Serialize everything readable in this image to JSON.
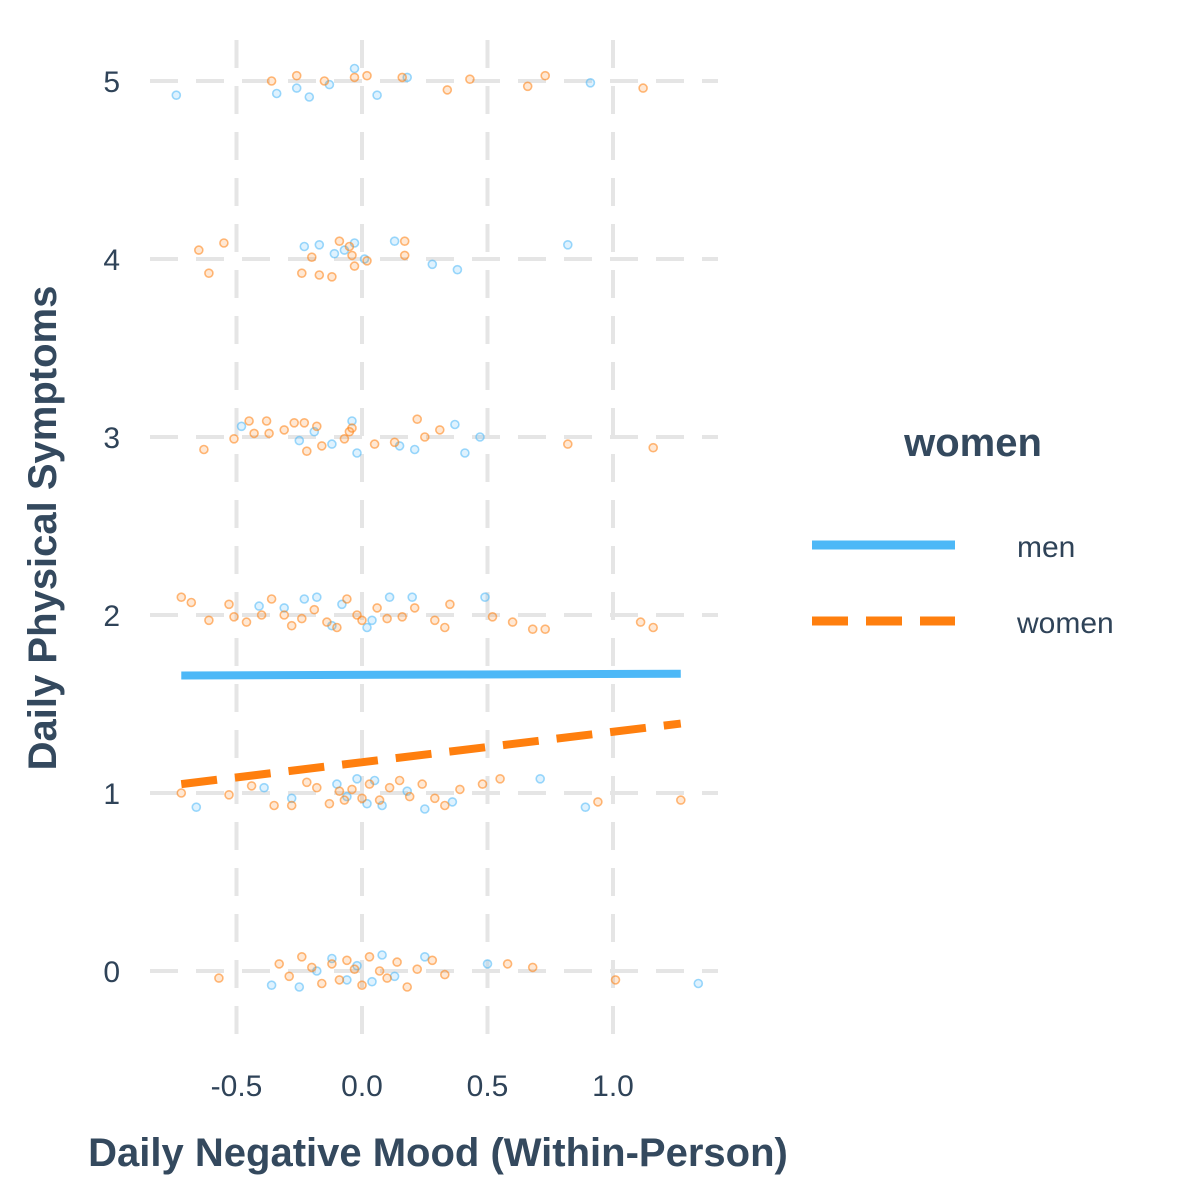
{
  "chart_data": {
    "type": "scatter",
    "xlabel": "Daily Negative Mood (Within-Person)",
    "ylabel": "Daily Physical Symptoms",
    "x_ticks": [
      "-0.5",
      "0.0",
      "0.5",
      "1.0"
    ],
    "y_ticks": [
      "0",
      "1",
      "2",
      "3",
      "4",
      "5"
    ],
    "xlim": [
      -0.85,
      1.4
    ],
    "ylim": [
      -0.35,
      5.25
    ],
    "grid": true,
    "grid_style": "dashed",
    "legend": {
      "title": "women",
      "placement": "right",
      "entries": [
        {
          "label": "men",
          "color": "#4db8f7",
          "line_style": "solid"
        },
        {
          "label": "women",
          "color": "#ff7f0e",
          "line_style": "dashed"
        }
      ]
    },
    "series": [
      {
        "name": "men",
        "color": "#4db8f7",
        "points": [
          [
            -0.74,
            4.92
          ],
          [
            -0.34,
            4.93
          ],
          [
            -0.26,
            4.96
          ],
          [
            -0.21,
            4.91
          ],
          [
            -0.13,
            4.98
          ],
          [
            -0.03,
            5.07
          ],
          [
            0.06,
            4.92
          ],
          [
            0.18,
            5.02
          ],
          [
            0.91,
            4.99
          ],
          [
            -0.23,
            4.07
          ],
          [
            -0.17,
            4.08
          ],
          [
            -0.11,
            4.03
          ],
          [
            -0.07,
            4.05
          ],
          [
            -0.03,
            4.09
          ],
          [
            0.01,
            4.0
          ],
          [
            0.13,
            4.1
          ],
          [
            0.28,
            3.97
          ],
          [
            0.38,
            3.94
          ],
          [
            0.82,
            4.08
          ],
          [
            -0.48,
            3.06
          ],
          [
            -0.25,
            2.98
          ],
          [
            -0.19,
            3.03
          ],
          [
            -0.12,
            2.96
          ],
          [
            -0.04,
            3.09
          ],
          [
            -0.02,
            2.91
          ],
          [
            0.15,
            2.95
          ],
          [
            0.21,
            2.93
          ],
          [
            0.37,
            3.07
          ],
          [
            0.41,
            2.91
          ],
          [
            0.47,
            3.0
          ],
          [
            -0.41,
            2.05
          ],
          [
            -0.31,
            2.04
          ],
          [
            -0.23,
            2.09
          ],
          [
            -0.18,
            2.1
          ],
          [
            -0.08,
            2.06
          ],
          [
            0.04,
            1.97
          ],
          [
            0.11,
            2.1
          ],
          [
            0.2,
            2.1
          ],
          [
            0.49,
            2.1
          ],
          [
            -0.12,
            1.94
          ],
          [
            0.02,
            1.93
          ],
          [
            -0.66,
            0.92
          ],
          [
            -0.39,
            1.03
          ],
          [
            -0.28,
            0.97
          ],
          [
            -0.1,
            1.05
          ],
          [
            -0.06,
            0.98
          ],
          [
            -0.02,
            1.08
          ],
          [
            0.02,
            0.94
          ],
          [
            0.05,
            1.07
          ],
          [
            0.08,
            0.93
          ],
          [
            0.18,
            1.01
          ],
          [
            0.25,
            0.91
          ],
          [
            0.36,
            0.95
          ],
          [
            0.71,
            1.08
          ],
          [
            0.89,
            0.92
          ],
          [
            -0.36,
            -0.08
          ],
          [
            -0.25,
            -0.09
          ],
          [
            -0.18,
            0.0
          ],
          [
            -0.12,
            0.07
          ],
          [
            -0.06,
            -0.05
          ],
          [
            -0.02,
            0.03
          ],
          [
            0.04,
            -0.06
          ],
          [
            0.08,
            0.09
          ],
          [
            0.13,
            -0.03
          ],
          [
            0.25,
            0.08
          ],
          [
            0.5,
            0.04
          ],
          [
            1.34,
            -0.07
          ]
        ]
      },
      {
        "name": "women",
        "color": "#ff7f0e",
        "points": [
          [
            -0.36,
            5.0
          ],
          [
            -0.26,
            5.03
          ],
          [
            -0.15,
            5.0
          ],
          [
            -0.03,
            5.02
          ],
          [
            0.02,
            5.03
          ],
          [
            0.16,
            5.02
          ],
          [
            0.34,
            4.95
          ],
          [
            0.43,
            5.01
          ],
          [
            0.66,
            4.97
          ],
          [
            0.73,
            5.03
          ],
          [
            1.12,
            4.96
          ],
          [
            -0.65,
            4.05
          ],
          [
            -0.61,
            3.92
          ],
          [
            -0.55,
            4.09
          ],
          [
            -0.24,
            3.92
          ],
          [
            -0.2,
            4.01
          ],
          [
            -0.17,
            3.91
          ],
          [
            -0.12,
            3.9
          ],
          [
            -0.09,
            4.1
          ],
          [
            -0.05,
            4.07
          ],
          [
            -0.04,
            4.02
          ],
          [
            -0.03,
            3.96
          ],
          [
            0.02,
            3.99
          ],
          [
            0.17,
            4.1
          ],
          [
            0.17,
            4.02
          ],
          [
            -0.63,
            2.93
          ],
          [
            -0.51,
            2.99
          ],
          [
            -0.45,
            3.09
          ],
          [
            -0.43,
            3.02
          ],
          [
            -0.38,
            3.09
          ],
          [
            -0.37,
            3.02
          ],
          [
            -0.31,
            3.04
          ],
          [
            -0.27,
            3.08
          ],
          [
            -0.23,
            3.08
          ],
          [
            -0.22,
            2.92
          ],
          [
            -0.18,
            3.06
          ],
          [
            -0.16,
            2.95
          ],
          [
            -0.07,
            2.99
          ],
          [
            -0.05,
            3.03
          ],
          [
            -0.04,
            3.05
          ],
          [
            0.05,
            2.96
          ],
          [
            0.13,
            2.97
          ],
          [
            0.22,
            3.1
          ],
          [
            0.25,
            3.0
          ],
          [
            0.31,
            3.04
          ],
          [
            0.82,
            2.96
          ],
          [
            1.16,
            2.94
          ],
          [
            -0.72,
            2.1
          ],
          [
            -0.68,
            2.07
          ],
          [
            -0.61,
            1.97
          ],
          [
            -0.53,
            2.06
          ],
          [
            -0.51,
            1.99
          ],
          [
            -0.46,
            1.96
          ],
          [
            -0.4,
            2.0
          ],
          [
            -0.36,
            2.09
          ],
          [
            -0.31,
            2.0
          ],
          [
            -0.28,
            1.94
          ],
          [
            -0.24,
            1.98
          ],
          [
            -0.19,
            2.03
          ],
          [
            -0.14,
            1.96
          ],
          [
            -0.1,
            1.93
          ],
          [
            -0.06,
            2.09
          ],
          [
            -0.02,
            2.0
          ],
          [
            0.0,
            1.97
          ],
          [
            0.06,
            2.04
          ],
          [
            0.1,
            1.98
          ],
          [
            0.16,
            1.99
          ],
          [
            0.21,
            2.04
          ],
          [
            0.29,
            1.97
          ],
          [
            0.33,
            1.93
          ],
          [
            0.35,
            2.06
          ],
          [
            0.52,
            1.99
          ],
          [
            0.6,
            1.96
          ],
          [
            0.68,
            1.92
          ],
          [
            0.73,
            1.92
          ],
          [
            1.11,
            1.96
          ],
          [
            1.16,
            1.93
          ],
          [
            -0.72,
            1.0
          ],
          [
            -0.53,
            0.99
          ],
          [
            -0.44,
            1.04
          ],
          [
            -0.35,
            0.93
          ],
          [
            -0.28,
            0.93
          ],
          [
            -0.22,
            1.06
          ],
          [
            -0.18,
            1.03
          ],
          [
            -0.13,
            0.94
          ],
          [
            -0.09,
            1.01
          ],
          [
            -0.07,
            0.96
          ],
          [
            -0.04,
            1.02
          ],
          [
            0.0,
            0.97
          ],
          [
            0.03,
            1.05
          ],
          [
            0.07,
            0.96
          ],
          [
            0.11,
            1.03
          ],
          [
            0.15,
            1.07
          ],
          [
            0.19,
            0.98
          ],
          [
            0.24,
            1.05
          ],
          [
            0.29,
            0.97
          ],
          [
            0.33,
            0.93
          ],
          [
            0.39,
            1.02
          ],
          [
            0.48,
            1.05
          ],
          [
            0.55,
            1.08
          ],
          [
            0.94,
            0.95
          ],
          [
            1.27,
            0.96
          ],
          [
            -0.57,
            -0.04
          ],
          [
            -0.33,
            0.04
          ],
          [
            -0.29,
            -0.03
          ],
          [
            -0.24,
            0.08
          ],
          [
            -0.2,
            0.02
          ],
          [
            -0.16,
            -0.07
          ],
          [
            -0.12,
            0.04
          ],
          [
            -0.09,
            -0.05
          ],
          [
            -0.06,
            0.06
          ],
          [
            -0.03,
            0.01
          ],
          [
            0.0,
            -0.08
          ],
          [
            0.03,
            0.08
          ],
          [
            0.07,
            0.0
          ],
          [
            0.1,
            -0.04
          ],
          [
            0.14,
            0.05
          ],
          [
            0.18,
            -0.09
          ],
          [
            0.22,
            0.01
          ],
          [
            0.28,
            0.06
          ],
          [
            0.33,
            -0.02
          ],
          [
            0.58,
            0.04
          ],
          [
            0.68,
            0.02
          ],
          [
            1.01,
            -0.05
          ]
        ]
      }
    ],
    "fit_lines": [
      {
        "name": "men",
        "color": "#4db8f7",
        "line_style": "solid",
        "x": [
          -0.72,
          1.27
        ],
        "y": [
          1.66,
          1.67
        ]
      },
      {
        "name": "women",
        "color": "#ff7f0e",
        "line_style": "dashed",
        "x": [
          -0.72,
          1.27
        ],
        "y": [
          1.05,
          1.39
        ]
      }
    ]
  }
}
